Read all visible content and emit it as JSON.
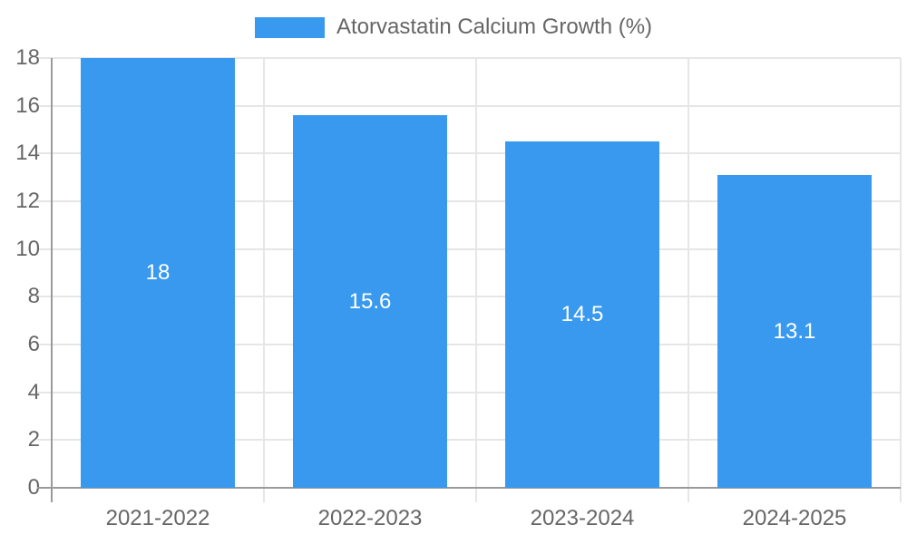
{
  "legend": {
    "label": "Atorvastatin Calcium Growth (%)"
  },
  "colors": {
    "bar": "#3999ee",
    "grid": "#e6e6e6",
    "axis": "#9a9a9a",
    "tick_text": "#666666",
    "legend_text": "#666666",
    "bar_label_text": "#ffffff",
    "background": "#ffffff"
  },
  "chart_data": {
    "type": "bar",
    "title": "Atorvastatin Calcium Growth (%)",
    "categories": [
      "2021-2022",
      "2022-2023",
      "2023-2024",
      "2024-2025"
    ],
    "values": [
      18,
      15.6,
      14.5,
      13.1
    ],
    "value_labels": [
      "18",
      "15.6",
      "14.5",
      "13.1"
    ],
    "y_ticks": [
      0,
      2,
      4,
      6,
      8,
      10,
      12,
      14,
      16,
      18
    ],
    "ylim": [
      0,
      18
    ],
    "xlabel": "",
    "ylabel": "",
    "grid": true,
    "legend_position": "top",
    "bar_color": "#3999ee",
    "value_label_position": "inside-center"
  }
}
